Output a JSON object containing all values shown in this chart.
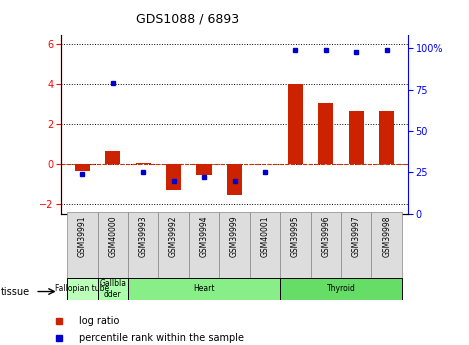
{
  "title": "GDS1088 / 6893",
  "samples": [
    "GSM39991",
    "GSM40000",
    "GSM39993",
    "GSM39992",
    "GSM39994",
    "GSM39999",
    "GSM40001",
    "GSM39995",
    "GSM39996",
    "GSM39997",
    "GSM39998"
  ],
  "log_ratio": [
    -0.35,
    0.65,
    0.05,
    -1.3,
    -0.55,
    -1.55,
    0.0,
    4.0,
    3.05,
    2.65,
    2.65
  ],
  "percentile_rank": [
    24,
    79,
    25,
    20,
    22,
    20,
    25,
    99,
    99,
    98,
    99
  ],
  "tissues": [
    {
      "label": "Fallopian tube",
      "start": 0,
      "end": 1,
      "color": "#bbffbb"
    },
    {
      "label": "Gallbla\ndder",
      "start": 1,
      "end": 2,
      "color": "#aaffaa"
    },
    {
      "label": "Heart",
      "start": 2,
      "end": 7,
      "color": "#88ee88"
    },
    {
      "label": "Thyroid",
      "start": 7,
      "end": 11,
      "color": "#66dd66"
    }
  ],
  "ylim_left": [
    -2.5,
    6.5
  ],
  "ylim_right": [
    0,
    108.33
  ],
  "yticks_left": [
    -2,
    0,
    2,
    4,
    6
  ],
  "yticks_right": [
    0,
    25,
    50,
    75,
    100
  ],
  "ytick_labels_right": [
    "0",
    "25",
    "50",
    "75",
    "100%"
  ],
  "bar_color": "#cc2200",
  "dot_color": "#0000cc",
  "bar_width": 0.5
}
